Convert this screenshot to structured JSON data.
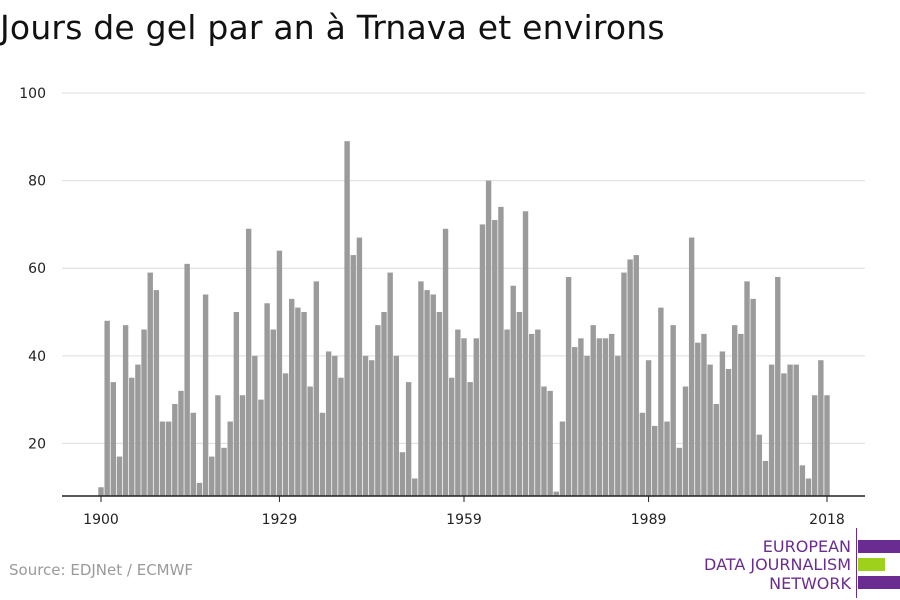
{
  "chart_data": {
    "type": "bar",
    "title": "Jours de gel par an à Trnava et environs",
    "xlabel": "",
    "ylabel": "",
    "x_start": 1900,
    "x_end": 2018,
    "x_ticks": [
      1900,
      1929,
      1959,
      1989,
      2018
    ],
    "y_ticks": [
      20,
      40,
      60,
      80,
      100
    ],
    "ylim": [
      8,
      100
    ],
    "grid": true,
    "values": [
      10,
      48,
      34,
      17,
      47,
      35,
      38,
      46,
      59,
      55,
      25,
      25,
      29,
      32,
      61,
      27,
      11,
      54,
      17,
      31,
      19,
      25,
      50,
      31,
      69,
      40,
      30,
      52,
      46,
      64,
      36,
      53,
      51,
      50,
      33,
      57,
      27,
      41,
      40,
      35,
      89,
      63,
      67,
      40,
      39,
      47,
      50,
      59,
      40,
      18,
      34,
      12,
      57,
      55,
      54,
      50,
      69,
      35,
      46,
      44,
      34,
      44,
      70,
      80,
      71,
      74,
      46,
      56,
      50,
      73,
      45,
      46,
      33,
      32,
      9,
      25,
      58,
      42,
      44,
      40,
      47,
      44,
      44,
      45,
      40,
      59,
      62,
      63,
      27,
      39,
      24,
      51,
      25,
      47,
      19,
      33,
      67,
      43,
      45,
      38,
      29,
      41,
      37,
      47,
      45,
      57,
      53,
      22,
      16,
      38,
      58,
      36,
      38,
      38,
      15,
      12,
      31,
      39,
      31
    ]
  },
  "source": "Source: EDJNet / ECMWF",
  "logo": {
    "line1": "EUROPEAN",
    "line2": "DATA JOURNALISM",
    "line3": "NETWORK"
  },
  "colors": {
    "bar": "#9b9b9b",
    "grid": "#dcdcdc",
    "axis": "#222222",
    "brand_purple": "#6b2c91",
    "brand_green": "#9dd11c"
  }
}
